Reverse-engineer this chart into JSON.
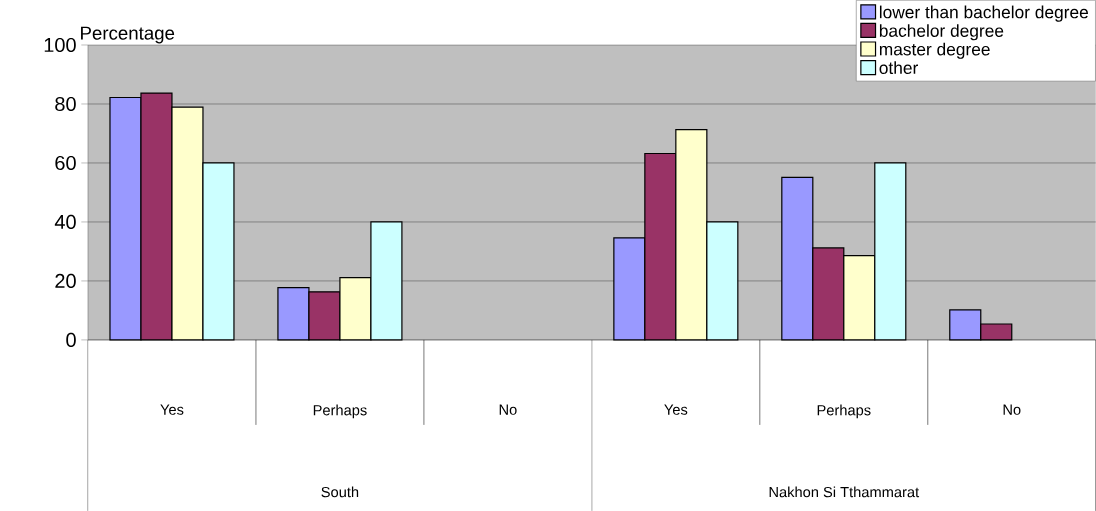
{
  "chart_data": {
    "type": "bar",
    "ylabel": "Percentage",
    "categories": [
      "Yes",
      "Perhaps",
      "No",
      "Yes",
      "Perhaps",
      "No"
    ],
    "annotations": [
      "South",
      "Nakhon Si Tthammarat"
    ],
    "series": [
      {
        "name": "lower than bachelor degree",
        "color": "#9999ff",
        "values": [
          82.2,
          17.7,
          null,
          34.6,
          55.1,
          10.2
        ]
      },
      {
        "name": "bachelor degree",
        "color": "#993366",
        "values": [
          83.7,
          16.3,
          null,
          63.2,
          31.2,
          5.4
        ]
      },
      {
        "name": "master degree",
        "color": "#ffffcc",
        "values": [
          78.9,
          21.1,
          null,
          71.3,
          28.6,
          null
        ]
      },
      {
        "name": "other",
        "color": "#ccffff",
        "values": [
          60,
          40,
          null,
          40,
          60,
          null
        ]
      }
    ],
    "ylim": [
      0,
      100
    ],
    "yticks": [
      0,
      20,
      40,
      60,
      80,
      100
    ],
    "grid": "y",
    "legend": "top right"
  }
}
